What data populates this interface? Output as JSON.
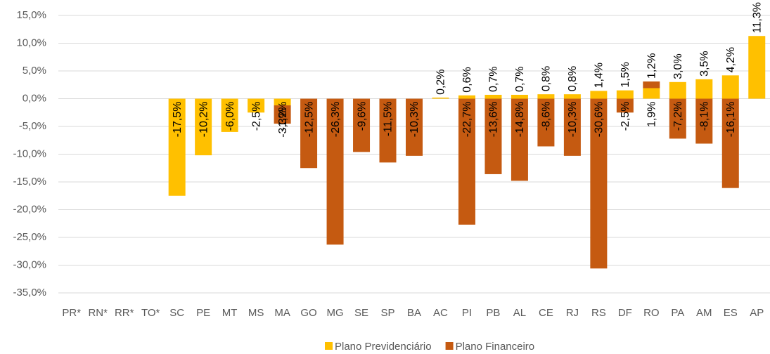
{
  "chart_data": {
    "type": "bar",
    "stacked": true,
    "categories": [
      "PR*",
      "RN*",
      "RR*",
      "TO*",
      "SC",
      "PE",
      "MT",
      "MS",
      "MA",
      "GO",
      "MG",
      "SE",
      "SP",
      "BA",
      "AC",
      "PI",
      "PB",
      "AL",
      "CE",
      "RJ",
      "RS",
      "DF",
      "RO",
      "PA",
      "AM",
      "ES",
      "AP"
    ],
    "series": [
      {
        "name": "Plano Previdenciário",
        "color": "#FFC000",
        "values": [
          null,
          null,
          null,
          null,
          -17.5,
          -10.2,
          -6.0,
          -2.5,
          -1.2,
          null,
          null,
          null,
          null,
          null,
          0.2,
          0.6,
          0.7,
          0.7,
          0.8,
          0.8,
          1.4,
          1.5,
          1.9,
          3.0,
          3.5,
          4.2,
          11.3
        ],
        "value_labels": [
          null,
          null,
          null,
          null,
          "-17,5%",
          "-10,2%",
          "-6,0%",
          "-2,5%",
          "-1,2%",
          null,
          null,
          null,
          null,
          null,
          "0,2%",
          "0,6%",
          "0,7%",
          "0,7%",
          "0,8%",
          "0,8%",
          "1,4%",
          "1,5%",
          "1,9%",
          "3,0%",
          "3,5%",
          "4,2%",
          "11,3%"
        ]
      },
      {
        "name": "Plano Financeiro",
        "color": "#C55A11",
        "values": [
          null,
          null,
          null,
          null,
          null,
          null,
          null,
          null,
          -3.3,
          -12.5,
          -26.3,
          -9.6,
          -11.5,
          -10.3,
          null,
          -22.7,
          -13.6,
          -14.8,
          -8.6,
          -10.3,
          -30.6,
          -2.5,
          1.2,
          -7.2,
          -8.1,
          -16.1,
          null
        ],
        "value_labels": [
          null,
          null,
          null,
          null,
          null,
          null,
          null,
          null,
          "-3,3%",
          "-12,5%",
          "-26,3%",
          "-9,6%",
          "-11,5%",
          "-10,3%",
          null,
          "-22,7%",
          "-13,6%",
          "-14,8%",
          "-8,6%",
          "-10,3%",
          "-30,6%",
          "-2,5%",
          "1,2%",
          "-7,2%",
          "-8,1%",
          "-16,1%",
          null
        ]
      }
    ],
    "ylim": [
      -35,
      15
    ],
    "yticks": [
      {
        "value": 15,
        "label": "15,0%"
      },
      {
        "value": 10,
        "label": "10,0%"
      },
      {
        "value": 5,
        "label": "5,0%"
      },
      {
        "value": 0,
        "label": "0,0%"
      },
      {
        "value": -5,
        "label": "-5,0%"
      },
      {
        "value": -10,
        "label": "-10,0%"
      },
      {
        "value": -15,
        "label": "-15,0%"
      },
      {
        "value": -20,
        "label": "-20,0%"
      },
      {
        "value": -25,
        "label": "-25,0%"
      },
      {
        "value": -30,
        "label": "-30,0%"
      },
      {
        "value": -35,
        "label": "-35,0%"
      }
    ],
    "grid": true,
    "legend": "bottom"
  }
}
